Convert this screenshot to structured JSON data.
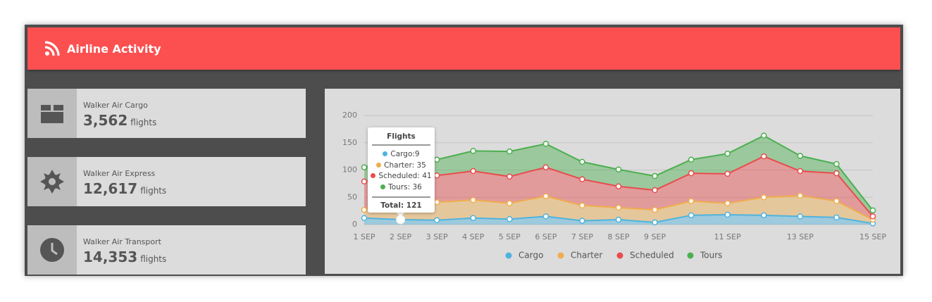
{
  "header": {
    "title": "Airline Activity"
  },
  "cards": [
    {
      "name": "Walker Air Cargo",
      "value": "3,562",
      "unit": "flights"
    },
    {
      "name": "Walker Air Express",
      "value": "12,617",
      "unit": "flights"
    },
    {
      "name": "Walker Air Transport",
      "value": "14,353",
      "unit": "flights"
    }
  ],
  "chart_data": {
    "type": "stacked-area",
    "categories": [
      "1 SEP",
      "2 SEP",
      "3 SEP",
      "4 SEP",
      "5 SEP",
      "6 SEP",
      "7 SEP",
      "8 SEP",
      "9 SEP",
      null,
      "11 SEP",
      null,
      "13 SEP",
      null,
      "15 SEP"
    ],
    "series": [
      {
        "name": "Cargo",
        "color": "#4fb3de",
        "values": [
          12,
          9,
          8,
          12,
          10,
          15,
          7,
          9,
          4,
          17,
          18,
          17,
          15,
          13,
          2
        ]
      },
      {
        "name": "Charter",
        "color": "#f0ad4e",
        "values": [
          15,
          35,
          33,
          33,
          29,
          37,
          28,
          22,
          23,
          26,
          21,
          33,
          38,
          30,
          7
        ]
      },
      {
        "name": "Scheduled",
        "color": "#e84c4c",
        "values": [
          52,
          41,
          49,
          53,
          49,
          53,
          48,
          39,
          36,
          51,
          54,
          75,
          45,
          51,
          6
        ]
      },
      {
        "name": "Tours",
        "color": "#4caf50",
        "values": [
          26,
          36,
          29,
          37,
          46,
          43,
          32,
          31,
          26,
          25,
          37,
          38,
          28,
          17,
          11
        ]
      }
    ],
    "ylim": [
      0,
      200
    ],
    "yticks": [
      0,
      50,
      100,
      150,
      200
    ],
    "grid": true,
    "tooltip": {
      "title": "Flights",
      "items": [
        "Cargo:9",
        "Charter: 35",
        "Scheduled: 41",
        "Tours: 36"
      ],
      "total": "Total: 121"
    }
  }
}
